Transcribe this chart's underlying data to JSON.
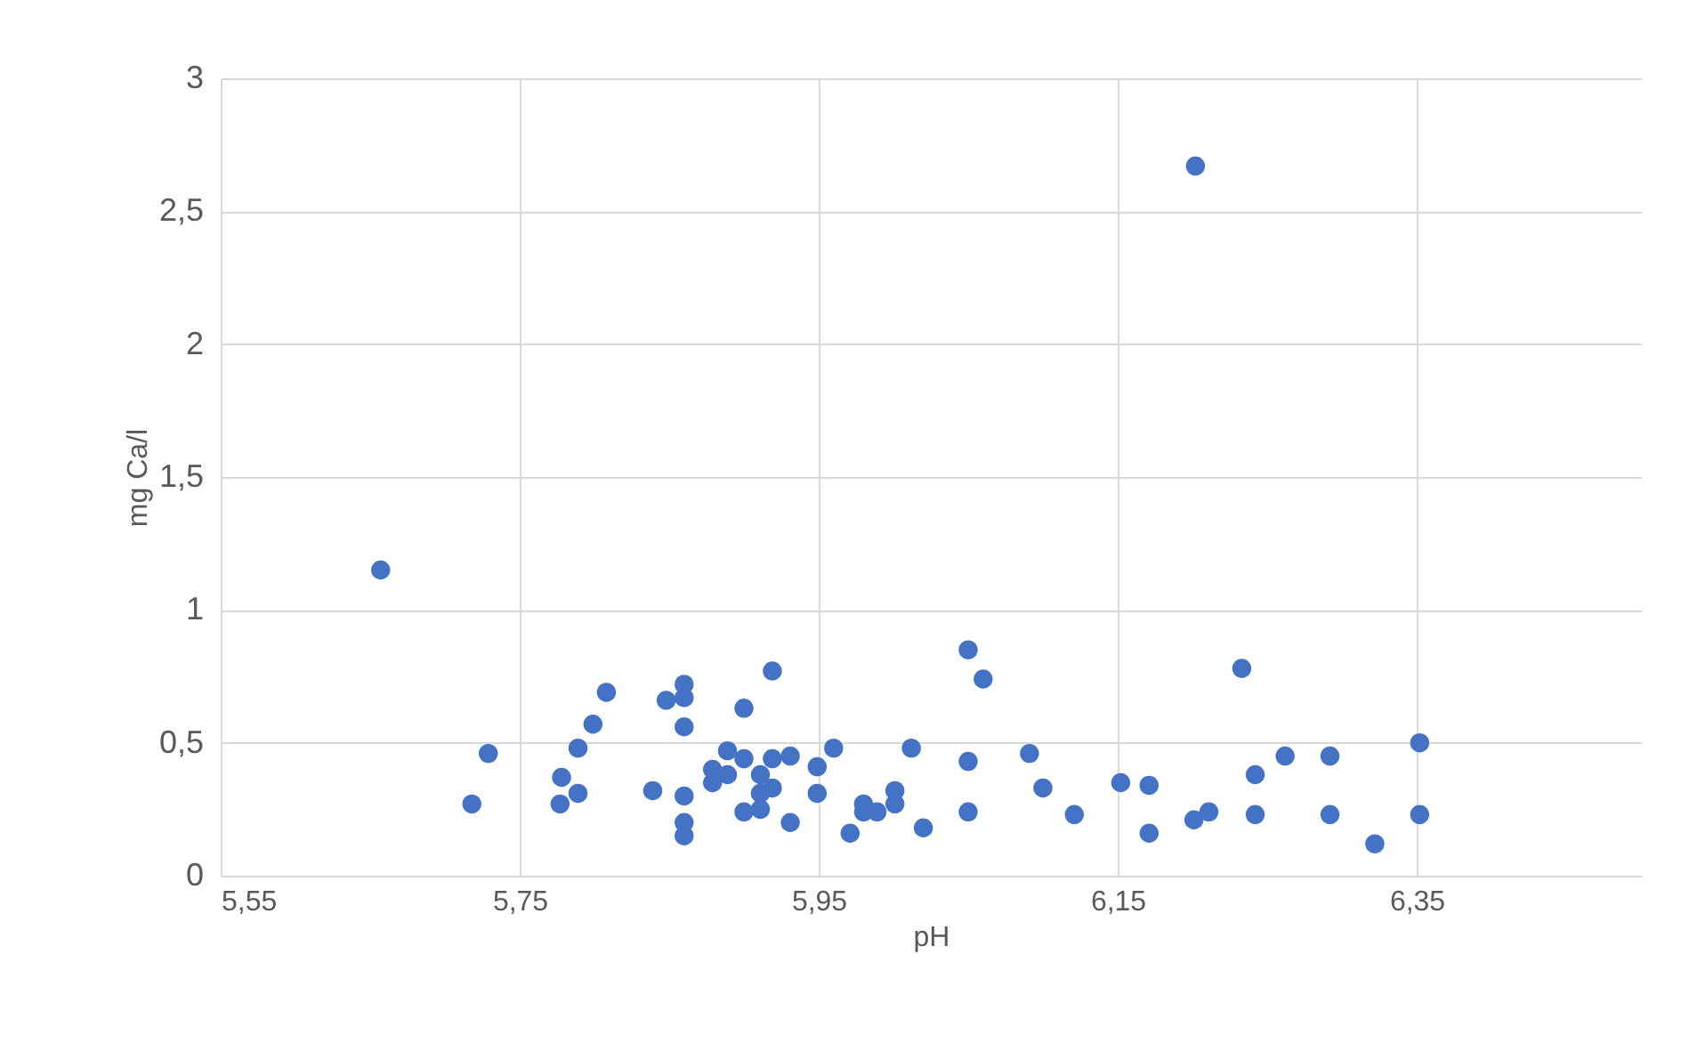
{
  "chart_data": {
    "type": "scatter",
    "xlabel": "pH",
    "ylabel": "mg Ca/l",
    "x": [
      5.657,
      5.718,
      5.729,
      5.778,
      5.777,
      5.789,
      5.789,
      5.799,
      5.808,
      5.839,
      5.848,
      5.86,
      5.86,
      5.86,
      5.86,
      5.86,
      5.86,
      5.9,
      5.919,
      5.889,
      5.9,
      5.879,
      5.879,
      5.889,
      5.9,
      5.911,
      5.919,
      5.931,
      5.911,
      5.911,
      5.919,
      5.931,
      5.949,
      5.949,
      5.96,
      6.012,
      6.05,
      6.06,
      6.05,
      6.05,
      6.091,
      6.1,
      5.971,
      5.98,
      5.98,
      5.989,
      6.001,
      6.001,
      6.02,
      6.121,
      6.152,
      6.171,
      6.171,
      6.233,
      6.201,
      6.211,
      6.242,
      6.242,
      6.262,
      6.292,
      6.292,
      6.322,
      6.352,
      6.352,
      6.202
    ],
    "series": [
      {
        "color": "#4472c4",
        "values": [
          1.15,
          0.27,
          0.46,
          0.37,
          0.27,
          0.31,
          0.48,
          0.57,
          0.69,
          0.32,
          0.66,
          0.72,
          0.67,
          0.56,
          0.3,
          0.2,
          0.15,
          0.63,
          0.77,
          0.47,
          0.44,
          0.4,
          0.35,
          0.38,
          0.24,
          0.38,
          0.44,
          0.45,
          0.31,
          0.25,
          0.33,
          0.2,
          0.31,
          0.41,
          0.48,
          0.48,
          0.85,
          0.74,
          0.43,
          0.24,
          0.46,
          0.33,
          0.16,
          0.27,
          0.24,
          0.24,
          0.32,
          0.27,
          0.18,
          0.23,
          0.35,
          0.34,
          0.16,
          0.78,
          0.21,
          0.24,
          0.38,
          0.23,
          0.45,
          0.45,
          0.23,
          0.12,
          0.5,
          0.23,
          2.67
        ]
      }
    ],
    "xlim": [
      5.55,
      6.5
    ],
    "xticks": [
      {
        "value": 5.55,
        "label": "5,55"
      },
      {
        "value": 5.75,
        "label": "5,75"
      },
      {
        "value": 5.95,
        "label": "5,95"
      },
      {
        "value": 6.15,
        "label": "6,15"
      },
      {
        "value": 6.35,
        "label": "6,35"
      }
    ],
    "ylim": [
      0,
      3
    ],
    "yticks": [
      0,
      {
        "value": 0.5,
        "label": "0,5"
      },
      1,
      {
        "value": 1.5,
        "label": "1,5"
      },
      2,
      {
        "value": 2.5,
        "label": "2,5"
      },
      3
    ],
    "grid": true,
    "marker": "circle"
  }
}
